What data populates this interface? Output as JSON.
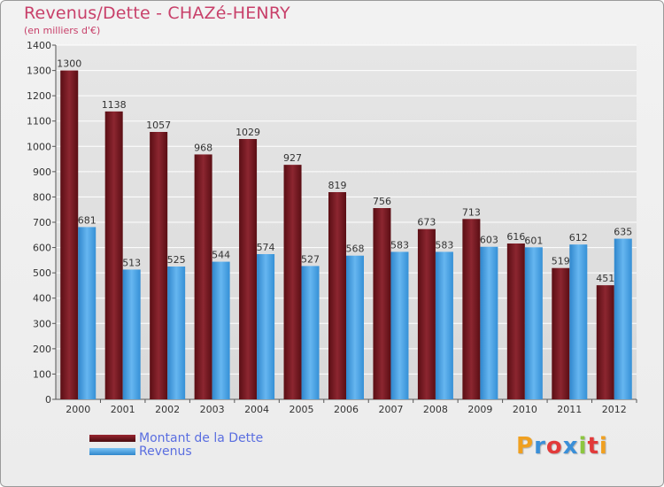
{
  "chart_data": {
    "type": "bar",
    "title": "Revenus/Dette - CHAZé-HENRY",
    "subtitle": "(en milliers d'€)",
    "categories": [
      "2000",
      "2001",
      "2002",
      "2003",
      "2004",
      "2005",
      "2006",
      "2007",
      "2008",
      "2009",
      "2010",
      "2011",
      "2012"
    ],
    "series": [
      {
        "name": "Montant de la Dette",
        "values": [
          1300,
          1138,
          1057,
          968,
          1029,
          927,
          819,
          756,
          673,
          713,
          616,
          519,
          451
        ]
      },
      {
        "name": "Revenus",
        "values": [
          681,
          513,
          525,
          544,
          574,
          527,
          568,
          583,
          583,
          603,
          601,
          612,
          635
        ]
      }
    ],
    "ylim": [
      0,
      1400
    ],
    "yticks": [
      0,
      100,
      200,
      300,
      400,
      500,
      600,
      700,
      800,
      900,
      1000,
      1100,
      1200,
      1300,
      1400
    ],
    "grid": true,
    "legend": "bottom-left"
  },
  "colors": {
    "dette": "#7a1a22",
    "revenus": "#4ea3e6",
    "title": "#c8406a",
    "legend_text": "#5a6ee0"
  },
  "brand": {
    "letters": [
      "P",
      "r",
      "o",
      "x",
      "i",
      "t",
      "i"
    ],
    "colors": [
      "#f0a020",
      "#3a8fd8",
      "#e23a3a",
      "#3a8fd8",
      "#8cc63f",
      "#e23a3a",
      "#f0a020"
    ]
  }
}
